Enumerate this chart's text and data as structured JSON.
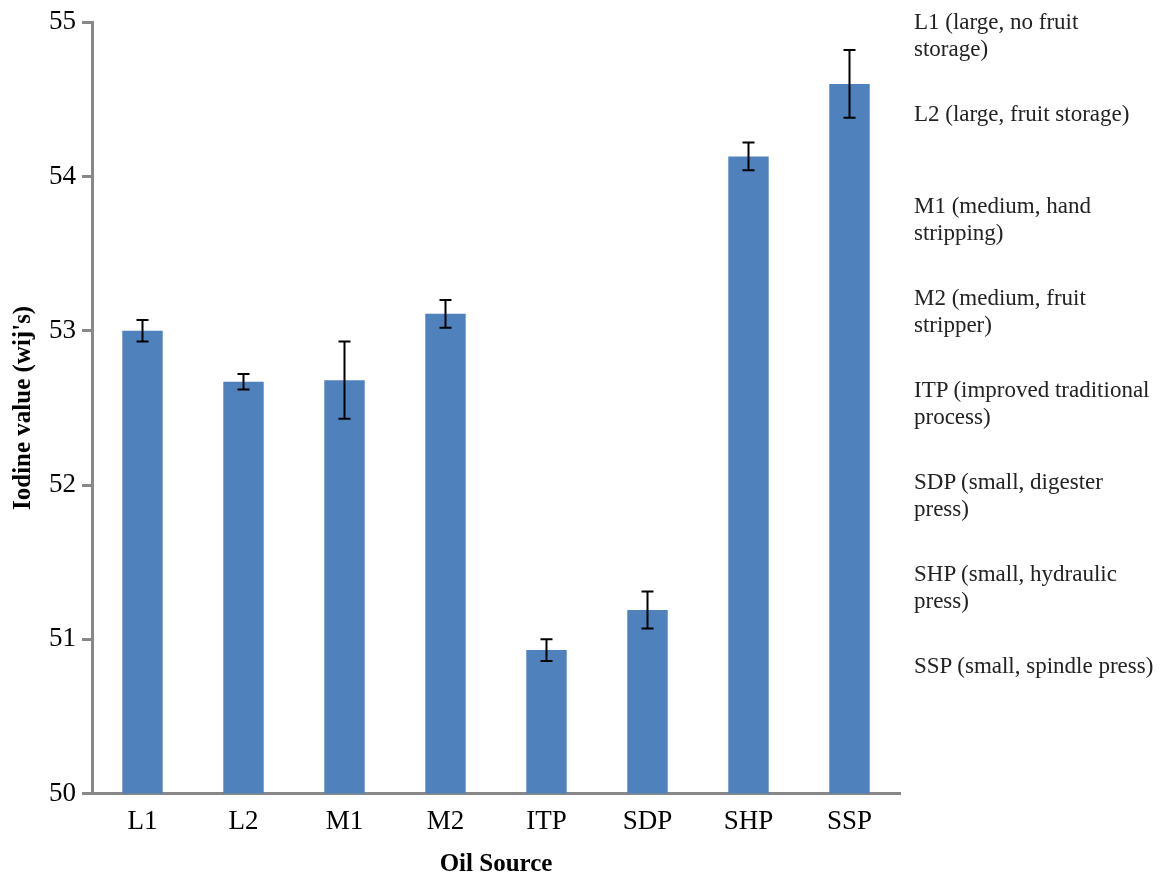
{
  "chart_data": {
    "type": "bar",
    "xlabel": "Oil Source",
    "ylabel": "Iodine value (wij's)",
    "categories": [
      "L1",
      "L2",
      "M1",
      "M2",
      "ITP",
      "SDP",
      "SHP",
      "SSP"
    ],
    "values": [
      53.0,
      52.67,
      52.68,
      53.11,
      50.93,
      51.19,
      54.13,
      54.6
    ],
    "errors": [
      0.07,
      0.05,
      0.25,
      0.09,
      0.07,
      0.12,
      0.09,
      0.22
    ],
    "color": "#4f81bd",
    "ylim": [
      50,
      55
    ],
    "yticks": [
      50,
      51,
      52,
      53,
      54,
      55
    ],
    "grid": false,
    "legend": false,
    "annotations": [
      "L1 (large, no fruit storage)",
      "L2 (large, fruit storage)",
      "M1 (medium, hand stripping)",
      "M2 (medium, fruit stripper)",
      "ITP (improved traditional process)",
      "SDP (small, digester press)",
      "SHP (small, hydraulic press)",
      "SSP (small, spindle press)"
    ]
  }
}
